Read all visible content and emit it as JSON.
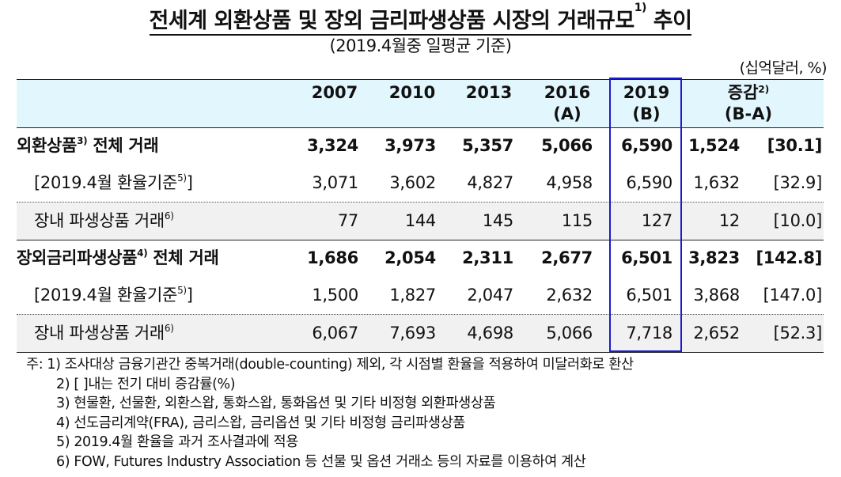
{
  "title": "전세계 외환상품 및 장외 금리파생상품 시장의 거래규모",
  "title_sup": "1)",
  "title_suffix": "추이",
  "subtitle": "(2019.4월중 일평균 기준)",
  "unit": "(십억달러, %)",
  "accent_color": "#1a1ad0",
  "header_bg": "#e2f6fd",
  "table": {
    "headers": [
      {
        "line1": "2007",
        "line2": ""
      },
      {
        "line1": "2010",
        "line2": ""
      },
      {
        "line1": "2013",
        "line2": ""
      },
      {
        "line1": "2016",
        "line2": "(A)"
      },
      {
        "line1": "2019",
        "line2": "(B)"
      },
      {
        "line1": "증감",
        "sup": "2)",
        "line2": "(B-A)"
      }
    ],
    "rows": [
      {
        "label": "외환상품",
        "sup": "3)",
        "label_suffix": " 전체 거래",
        "values": [
          "3,324",
          "3,973",
          "5,357",
          "5,066",
          "6,590",
          "1,524",
          "[30.1]"
        ]
      },
      {
        "label": "[2019.4월 환율기준",
        "sup": "5)",
        "label_suffix": "]",
        "values": [
          "3,071",
          "3,602",
          "4,827",
          "4,958",
          "6,590",
          "1,632",
          "[32.9]"
        ]
      },
      {
        "label": "장내 파생상품 거래",
        "sup": "6)",
        "label_suffix": "",
        "values": [
          "77",
          "144",
          "145",
          "115",
          "127",
          "12",
          "[10.0]"
        ]
      },
      {
        "label": "장외금리파생상품",
        "sup": "4)",
        "label_suffix": " 전체 거래",
        "values": [
          "1,686",
          "2,054",
          "2,311",
          "2,677",
          "6,501",
          "3,823",
          "[142.8]"
        ]
      },
      {
        "label": "[2019.4월 환율기준",
        "sup": "5)",
        "label_suffix": "]",
        "values": [
          "1,500",
          "1,827",
          "2,047",
          "2,632",
          "6,501",
          "3,868",
          "[147.0]"
        ]
      },
      {
        "label": "장내 파생상품 거래",
        "sup": "6)",
        "label_suffix": "",
        "values": [
          "6,067",
          "7,693",
          "4,698",
          "5,066",
          "7,718",
          "2,652",
          "[52.3]"
        ]
      }
    ]
  },
  "notes": [
    "주: 1) 조사대상 금융기관간 중복거래(double-counting) 제외, 각 시점별 환율을 적용하여 미달러화로 환산",
    "2) [   ]내는 전기 대비 증감률(%)",
    "3) 현물환, 선물환, 외환스왑, 통화스왑, 통화옵션 및 기타 비정형 외환파생상품",
    "4) 선도금리계약(FRA), 금리스왑, 금리옵션 및 기타 비정형 금리파생상품",
    "5) 2019.4월 환율을 과거 조사결과에 적용",
    "6) FOW, Futures Industry Association 등 선물 및 옵션 거래소 등의 자료를 이용하여 계산"
  ]
}
